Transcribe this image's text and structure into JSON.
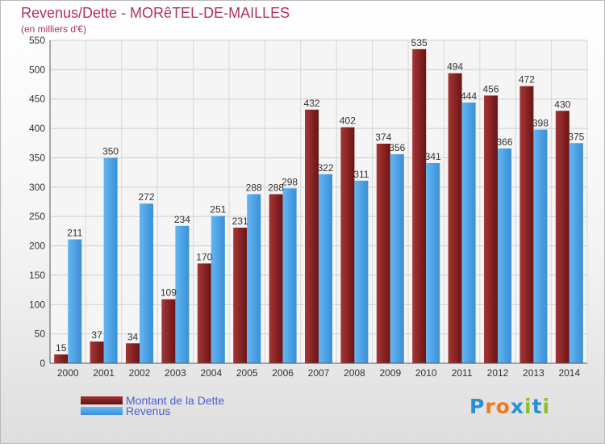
{
  "title": "Revenus/Dette - MORêTEL-DE-MAILLES",
  "subtitle": "(en milliers d'€)",
  "colors": {
    "dette": "#7d1c1c",
    "revenus": "#4aa3e6",
    "title": "#b0325a",
    "legend_text": "#4a5fd4"
  },
  "legend": [
    {
      "label": "Montant de la Dette",
      "color": "#7d1c1c"
    },
    {
      "label": "Revenus",
      "color": "#4aa3e6"
    }
  ],
  "logo": {
    "text": "Proxiti",
    "letter_colors": [
      "#2b8fd6",
      "#f07c17",
      "#f07c17",
      "#2b8fd6",
      "#8bbf2a",
      "#2b8fd6",
      "#8bbf2a"
    ]
  },
  "chart_data": {
    "type": "bar",
    "title": "Revenus/Dette - MORêTEL-DE-MAILLES",
    "subtitle": "(en milliers d'€)",
    "categories": [
      "2000",
      "2001",
      "2002",
      "2003",
      "2004",
      "2005",
      "2006",
      "2007",
      "2008",
      "2009",
      "2010",
      "2011",
      "2012",
      "2013",
      "2014"
    ],
    "series": [
      {
        "name": "Montant de la Dette",
        "values": [
          15,
          37,
          34,
          109,
          170,
          231,
          288,
          432,
          402,
          374,
          535,
          494,
          456,
          472,
          430
        ]
      },
      {
        "name": "Revenus",
        "values": [
          211,
          350,
          272,
          234,
          251,
          288,
          298,
          322,
          311,
          356,
          341,
          444,
          366,
          398,
          375
        ]
      }
    ],
    "yticks": [
      0,
      50,
      100,
      150,
      200,
      250,
      300,
      350,
      400,
      450,
      500,
      550
    ],
    "ylim": [
      0,
      550
    ],
    "grid": true,
    "legend_position": "bottom-left"
  }
}
